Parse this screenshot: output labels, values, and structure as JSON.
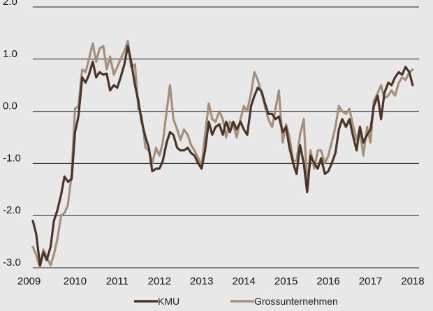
{
  "chart_data": {
    "type": "line",
    "xlim": [
      2009,
      2018.15
    ],
    "ylim": [
      -3.0,
      2.0
    ],
    "grid": "horizontal",
    "legend_position": "bottom",
    "x_ticks": [
      2009,
      2010,
      2011,
      2012,
      2013,
      2014,
      2015,
      2016,
      2017,
      2018
    ],
    "x_tick_labels": [
      "2009",
      "2010",
      "2011",
      "2012",
      "2013",
      "2014",
      "2015",
      "2016",
      "2017",
      "2018"
    ],
    "y_ticks": [
      -3.0,
      -2.0,
      -1.0,
      0.0,
      1.0,
      2.0
    ],
    "y_tick_labels": [
      "-3.0",
      "-2.0",
      "-1.0",
      "0.0",
      "1.0",
      "2.0"
    ],
    "series": [
      {
        "name": "KMU",
        "color": "#4a3328",
        "points": [
          [
            2009.0,
            -2.1
          ],
          [
            2009.08,
            -2.35
          ],
          [
            2009.17,
            -2.95
          ],
          [
            2009.25,
            -2.7
          ],
          [
            2009.33,
            -2.85
          ],
          [
            2009.42,
            -2.6
          ],
          [
            2009.5,
            -2.1
          ],
          [
            2009.58,
            -1.9
          ],
          [
            2009.67,
            -1.6
          ],
          [
            2009.75,
            -1.25
          ],
          [
            2009.83,
            -1.35
          ],
          [
            2009.92,
            -1.3
          ],
          [
            2010.0,
            -0.4
          ],
          [
            2010.08,
            -0.1
          ],
          [
            2010.17,
            0.65
          ],
          [
            2010.25,
            0.55
          ],
          [
            2010.33,
            0.7
          ],
          [
            2010.42,
            0.95
          ],
          [
            2010.5,
            0.65
          ],
          [
            2010.58,
            0.75
          ],
          [
            2010.67,
            0.7
          ],
          [
            2010.75,
            0.72
          ],
          [
            2010.83,
            0.4
          ],
          [
            2010.92,
            0.5
          ],
          [
            2011.0,
            0.45
          ],
          [
            2011.08,
            0.65
          ],
          [
            2011.17,
            0.9
          ],
          [
            2011.25,
            1.25
          ],
          [
            2011.33,
            0.95
          ],
          [
            2011.42,
            0.5
          ],
          [
            2011.5,
            0.2
          ],
          [
            2011.58,
            -0.2
          ],
          [
            2011.67,
            -0.5
          ],
          [
            2011.75,
            -0.7
          ],
          [
            2011.83,
            -1.15
          ],
          [
            2011.92,
            -1.1
          ],
          [
            2012.0,
            -1.1
          ],
          [
            2012.08,
            -0.95
          ],
          [
            2012.17,
            -0.6
          ],
          [
            2012.25,
            -0.4
          ],
          [
            2012.33,
            -0.45
          ],
          [
            2012.42,
            -0.7
          ],
          [
            2012.5,
            -0.75
          ],
          [
            2012.58,
            -0.75
          ],
          [
            2012.67,
            -0.7
          ],
          [
            2012.75,
            -0.8
          ],
          [
            2012.83,
            -0.85
          ],
          [
            2012.92,
            -1.0
          ],
          [
            2013.0,
            -1.1
          ],
          [
            2013.08,
            -0.75
          ],
          [
            2013.17,
            -0.2
          ],
          [
            2013.25,
            -0.45
          ],
          [
            2013.33,
            -0.3
          ],
          [
            2013.42,
            -0.25
          ],
          [
            2013.5,
            -0.45
          ],
          [
            2013.58,
            -0.2
          ],
          [
            2013.67,
            -0.4
          ],
          [
            2013.75,
            -0.2
          ],
          [
            2013.83,
            -0.35
          ],
          [
            2013.92,
            -0.2
          ],
          [
            2014.0,
            -0.35
          ],
          [
            2014.08,
            -0.45
          ],
          [
            2014.17,
            0.1
          ],
          [
            2014.25,
            0.3
          ],
          [
            2014.33,
            0.45
          ],
          [
            2014.42,
            0.38
          ],
          [
            2014.5,
            0.15
          ],
          [
            2014.58,
            -0.05
          ],
          [
            2014.67,
            -0.05
          ],
          [
            2014.75,
            -0.15
          ],
          [
            2014.83,
            -0.1
          ],
          [
            2014.92,
            -0.4
          ],
          [
            2015.0,
            -0.3
          ],
          [
            2015.08,
            -0.7
          ],
          [
            2015.17,
            -1.0
          ],
          [
            2015.25,
            -1.2
          ],
          [
            2015.33,
            -0.65
          ],
          [
            2015.42,
            -1.0
          ],
          [
            2015.5,
            -1.55
          ],
          [
            2015.58,
            -0.85
          ],
          [
            2015.67,
            -1.0
          ],
          [
            2015.75,
            -1.1
          ],
          [
            2015.83,
            -0.9
          ],
          [
            2015.92,
            -1.2
          ],
          [
            2016.0,
            -1.15
          ],
          [
            2016.08,
            -1.0
          ],
          [
            2016.17,
            -0.8
          ],
          [
            2016.25,
            -0.35
          ],
          [
            2016.33,
            -0.15
          ],
          [
            2016.42,
            -0.3
          ],
          [
            2016.5,
            -0.15
          ],
          [
            2016.58,
            -0.45
          ],
          [
            2016.67,
            -0.75
          ],
          [
            2016.75,
            -0.3
          ],
          [
            2016.83,
            -0.6
          ],
          [
            2016.92,
            -0.45
          ],
          [
            2017.0,
            -0.35
          ],
          [
            2017.08,
            0.1
          ],
          [
            2017.17,
            0.3
          ],
          [
            2017.25,
            -0.15
          ],
          [
            2017.33,
            0.35
          ],
          [
            2017.42,
            0.55
          ],
          [
            2017.5,
            0.5
          ],
          [
            2017.58,
            0.65
          ],
          [
            2017.67,
            0.75
          ],
          [
            2017.75,
            0.7
          ],
          [
            2017.83,
            0.85
          ],
          [
            2017.92,
            0.75
          ],
          [
            2018.0,
            0.5
          ]
        ]
      },
      {
        "name": "Grossunternehmen",
        "color": "#a48f7c",
        "points": [
          [
            2009.0,
            -2.6
          ],
          [
            2009.08,
            -2.75
          ],
          [
            2009.17,
            -3.0
          ],
          [
            2009.25,
            -2.65
          ],
          [
            2009.33,
            -2.8
          ],
          [
            2009.42,
            -2.95
          ],
          [
            2009.5,
            -2.75
          ],
          [
            2009.58,
            -2.45
          ],
          [
            2009.67,
            -2.0
          ],
          [
            2009.75,
            -1.95
          ],
          [
            2009.83,
            -1.8
          ],
          [
            2009.92,
            -1.2
          ],
          [
            2010.0,
            0.05
          ],
          [
            2010.08,
            0.1
          ],
          [
            2010.17,
            0.8
          ],
          [
            2010.25,
            0.75
          ],
          [
            2010.33,
            1.0
          ],
          [
            2010.42,
            1.3
          ],
          [
            2010.5,
            0.95
          ],
          [
            2010.58,
            1.2
          ],
          [
            2010.67,
            1.25
          ],
          [
            2010.75,
            0.8
          ],
          [
            2010.83,
            1.05
          ],
          [
            2010.92,
            0.7
          ],
          [
            2011.0,
            0.85
          ],
          [
            2011.08,
            1.0
          ],
          [
            2011.17,
            1.15
          ],
          [
            2011.25,
            1.35
          ],
          [
            2011.33,
            0.85
          ],
          [
            2011.42,
            0.9
          ],
          [
            2011.5,
            0.05
          ],
          [
            2011.58,
            -0.1
          ],
          [
            2011.67,
            -0.7
          ],
          [
            2011.75,
            -0.75
          ],
          [
            2011.83,
            -1.0
          ],
          [
            2011.92,
            -0.7
          ],
          [
            2012.0,
            -0.85
          ],
          [
            2012.08,
            -0.6
          ],
          [
            2012.17,
            0.0
          ],
          [
            2012.25,
            0.5
          ],
          [
            2012.33,
            -0.15
          ],
          [
            2012.42,
            -0.35
          ],
          [
            2012.5,
            -0.55
          ],
          [
            2012.58,
            -0.35
          ],
          [
            2012.67,
            -0.45
          ],
          [
            2012.75,
            -0.65
          ],
          [
            2012.83,
            -0.75
          ],
          [
            2012.92,
            -0.9
          ],
          [
            2013.0,
            -1.05
          ],
          [
            2013.08,
            -0.45
          ],
          [
            2013.17,
            0.15
          ],
          [
            2013.25,
            -0.15
          ],
          [
            2013.33,
            -0.2
          ],
          [
            2013.42,
            0.0
          ],
          [
            2013.5,
            -0.15
          ],
          [
            2013.58,
            -0.5
          ],
          [
            2013.67,
            -0.2
          ],
          [
            2013.75,
            -0.25
          ],
          [
            2013.83,
            -0.5
          ],
          [
            2013.92,
            -0.15
          ],
          [
            2014.0,
            0.1
          ],
          [
            2014.08,
            0.0
          ],
          [
            2014.17,
            0.35
          ],
          [
            2014.25,
            0.75
          ],
          [
            2014.33,
            0.6
          ],
          [
            2014.42,
            0.35
          ],
          [
            2014.5,
            0.1
          ],
          [
            2014.58,
            -0.15
          ],
          [
            2014.67,
            -0.3
          ],
          [
            2014.75,
            0.05
          ],
          [
            2014.83,
            0.4
          ],
          [
            2014.92,
            -0.6
          ],
          [
            2015.0,
            -0.25
          ],
          [
            2015.08,
            -0.5
          ],
          [
            2015.17,
            -0.95
          ],
          [
            2015.25,
            -0.95
          ],
          [
            2015.33,
            -0.45
          ],
          [
            2015.42,
            -0.15
          ],
          [
            2015.5,
            -1.45
          ],
          [
            2015.58,
            -0.75
          ],
          [
            2015.67,
            -1.1
          ],
          [
            2015.75,
            -0.75
          ],
          [
            2015.83,
            -0.75
          ],
          [
            2015.92,
            -1.0
          ],
          [
            2016.0,
            -0.85
          ],
          [
            2016.08,
            -0.6
          ],
          [
            2016.17,
            -0.3
          ],
          [
            2016.25,
            0.1
          ],
          [
            2016.33,
            0.0
          ],
          [
            2016.42,
            -0.05
          ],
          [
            2016.5,
            0.05
          ],
          [
            2016.58,
            -0.25
          ],
          [
            2016.67,
            -0.55
          ],
          [
            2016.75,
            -0.35
          ],
          [
            2016.83,
            -0.85
          ],
          [
            2016.92,
            -0.3
          ],
          [
            2017.0,
            -0.6
          ],
          [
            2017.08,
            0.2
          ],
          [
            2017.17,
            0.35
          ],
          [
            2017.25,
            0.5
          ],
          [
            2017.33,
            0.25
          ],
          [
            2017.42,
            0.3
          ],
          [
            2017.5,
            0.4
          ],
          [
            2017.58,
            0.3
          ],
          [
            2017.67,
            0.55
          ],
          [
            2017.75,
            0.65
          ],
          [
            2017.83,
            0.6
          ],
          [
            2017.92,
            0.75
          ],
          [
            2018.0,
            0.8
          ]
        ]
      }
    ]
  }
}
